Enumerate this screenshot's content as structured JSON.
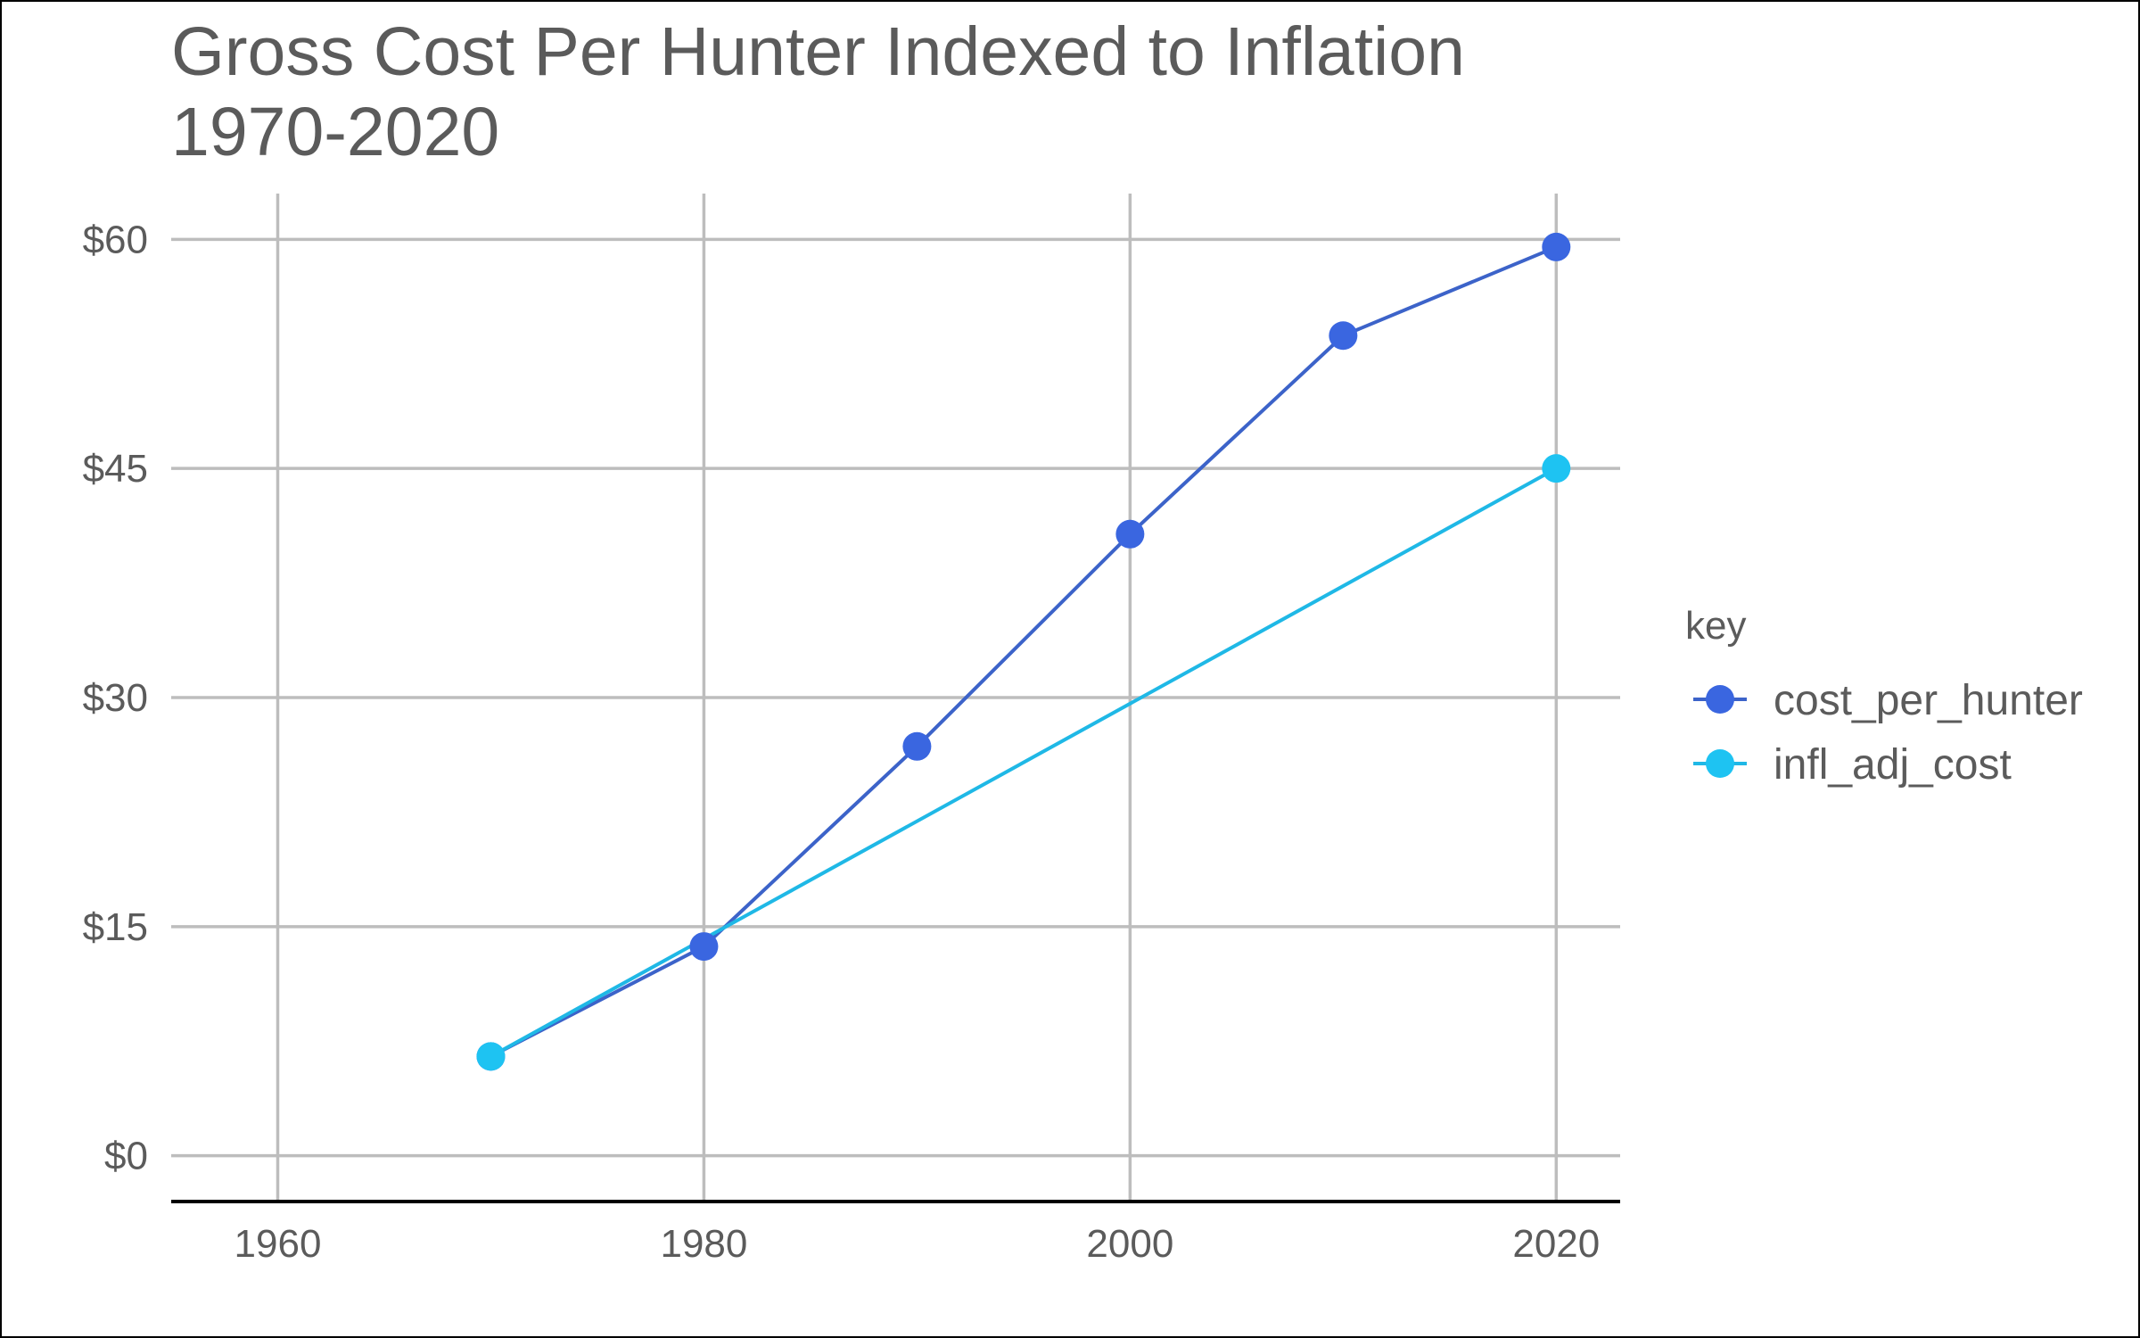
{
  "chart_data": {
    "type": "line",
    "title_line1": "Gross Cost Per Hunter Indexed to Inflation",
    "title_line2": "1970-2020",
    "xlabel": "",
    "ylabel": "",
    "xlim": [
      1955,
      2023
    ],
    "ylim": [
      -3,
      63
    ],
    "x_ticks": [
      1960,
      1980,
      2000,
      2020
    ],
    "x_tick_labels": [
      "1960",
      "1980",
      "2000",
      "2020"
    ],
    "y_ticks": [
      0,
      15,
      30,
      45,
      60
    ],
    "y_tick_labels": [
      "$0",
      "$15",
      "$30",
      "$45",
      "$60"
    ],
    "grid": true,
    "legend_title": "key",
    "legend_position": "right",
    "series": [
      {
        "name": "cost_per_hunter",
        "color": "#3a66e0",
        "line_color": "#3c63c9",
        "x": [
          1970,
          1980,
          1990,
          2000,
          2010,
          2020
        ],
        "values": [
          6.5,
          13.7,
          26.8,
          40.7,
          53.7,
          59.5
        ]
      },
      {
        "name": "infl_adj_cost",
        "color": "#1ec3f2",
        "line_color": "#1fb8e6",
        "x": [
          1970,
          2020
        ],
        "values": [
          6.5,
          45.0
        ]
      }
    ]
  }
}
